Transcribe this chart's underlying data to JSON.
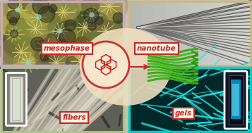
{
  "panels": {
    "top_left": {
      "label": "mesophase",
      "border_color": "#c8a8cc",
      "bg_color": "#908060"
    },
    "top_right": {
      "label": "nanotube",
      "border_color": "#c8b888",
      "bg_color": "#c8c4b8"
    },
    "bottom_left": {
      "label": "fibers",
      "border_color": "#a8c880",
      "bg_color": "#888880"
    },
    "bottom_right": {
      "label": "gels",
      "border_color": "#00cccc",
      "bg_color": "#003838"
    }
  },
  "center_circle_color": "#f0dfc0",
  "pyrene_color": "#cc2222",
  "arrow_color": "#cc2222",
  "green_color": "#44bb22",
  "fig_bg": "#c8c0a8",
  "label_face": "#fff8e8",
  "label_edge": "#cc2222",
  "label_text": "#cc2222"
}
